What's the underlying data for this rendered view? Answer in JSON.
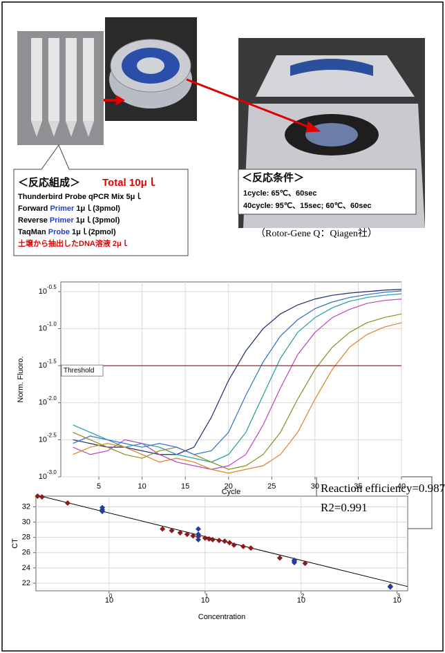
{
  "figure": {
    "composition": {
      "title": "＜反応組成＞",
      "total": "Total 10μｌ",
      "total_color": "#e00000",
      "lines": [
        [
          {
            "text": "Thunderbird Probe qPCR Mix  5μｌ",
            "color": "#000000"
          }
        ],
        [
          {
            "text": "Forward ",
            "color": "#000000"
          },
          {
            "text": "Primer",
            "color": "#1f3fd0"
          },
          {
            "text": " 1μｌ(3pmol)",
            "color": "#000000"
          }
        ],
        [
          {
            "text": "Reverse ",
            "color": "#000000"
          },
          {
            "text": "Primer",
            "color": "#1f3fd0"
          },
          {
            "text": " 1μｌ(3pmol)",
            "color": "#000000"
          }
        ],
        [
          {
            "text": "TaqMan ",
            "color": "#000000"
          },
          {
            "text": "Probe",
            "color": "#1f3fd0"
          },
          {
            "text": " 1μｌ(2pmol)",
            "color": "#000000"
          }
        ],
        [
          {
            "text": "土壌から抽出したDNA溶液 2μｌ",
            "color": "#e00000"
          }
        ]
      ]
    },
    "conditions": {
      "title": "＜反応条件＞",
      "lines": [
        "1cycle: 65℃、60sec",
        "40cycle: 95℃、15sec; 60℃、60sec"
      ]
    },
    "caption": "（Rotor-Gene Q：Qiagen社）"
  },
  "chart_data": [
    {
      "type": "line",
      "xlabel": "Cycle",
      "ylabel": "Norm. Fluoro.",
      "log_y": true,
      "grid": true,
      "x": [
        2,
        4,
        6,
        8,
        10,
        12,
        14,
        16,
        18,
        20,
        22,
        24,
        26,
        28,
        30,
        32,
        34,
        36,
        38,
        40
      ],
      "xlim": [
        0.6,
        40
      ],
      "xticks": [
        5,
        10,
        15,
        20,
        25,
        30,
        35,
        40
      ],
      "ylim": [
        0.001,
        0.427
      ],
      "yticks": [
        {
          "value": 0.316,
          "label": "10",
          "exponent": "-0.5"
        },
        {
          "value": 0.1,
          "label": "10",
          "exponent": "-1.0"
        },
        {
          "value": 0.0316,
          "label": "10",
          "exponent": "-1.5"
        },
        {
          "value": 0.01,
          "label": "10",
          "exponent": "-2.0"
        },
        {
          "value": 0.00316,
          "label": "10",
          "exponent": "-2.5"
        },
        {
          "value": 0.001,
          "label": "10",
          "exponent": "-3.0"
        }
      ],
      "threshold": {
        "label": "Threshold",
        "value": 0.0316,
        "color": "#b22222"
      },
      "series": [
        {
          "color": "#1a2a6c",
          "values": [
            0.00316,
            0.00282,
            0.00251,
            0.00251,
            0.00224,
            0.002,
            0.002,
            0.00251,
            0.00631,
            0.02,
            0.0501,
            0.1,
            0.158,
            0.209,
            0.251,
            0.282,
            0.302,
            0.316,
            0.331,
            0.339
          ]
        },
        {
          "color": "#1f9e9e",
          "values": [
            0.00501,
            0.00398,
            0.00316,
            0.00251,
            0.00282,
            0.00251,
            0.002,
            0.00178,
            0.00158,
            0.002,
            0.00398,
            0.0126,
            0.0398,
            0.0891,
            0.141,
            0.191,
            0.234,
            0.263,
            0.282,
            0.295
          ]
        },
        {
          "color": "#c040c0",
          "values": [
            0.00251,
            0.002,
            0.00224,
            0.00316,
            0.00282,
            0.002,
            0.00158,
            0.00141,
            0.00126,
            0.00141,
            0.002,
            0.00501,
            0.0158,
            0.0447,
            0.0891,
            0.141,
            0.182,
            0.219,
            0.24,
            0.251
          ]
        },
        {
          "color": "#8a8a20",
          "values": [
            0.00398,
            0.00316,
            0.00251,
            0.002,
            0.00178,
            0.00224,
            0.00251,
            0.002,
            0.00158,
            0.00126,
            0.00141,
            0.002,
            0.00398,
            0.0112,
            0.0282,
            0.0562,
            0.0891,
            0.12,
            0.141,
            0.158
          ]
        },
        {
          "color": "#e08020",
          "values": [
            0.002,
            0.00251,
            0.00282,
            0.00251,
            0.002,
            0.00158,
            0.00178,
            0.00158,
            0.00126,
            0.00112,
            0.00126,
            0.00141,
            0.002,
            0.00398,
            0.0112,
            0.0282,
            0.0562,
            0.0832,
            0.105,
            0.12
          ]
        },
        {
          "color": "#2f6fd0",
          "values": [
            0.00282,
            0.00355,
            0.00316,
            0.00282,
            0.00251,
            0.00282,
            0.00251,
            0.002,
            0.00224,
            0.00398,
            0.0126,
            0.0355,
            0.0794,
            0.132,
            0.186,
            0.229,
            0.263,
            0.288,
            0.309,
            0.324
          ]
        }
      ]
    },
    {
      "type": "scatter",
      "xlabel": "Concentration",
      "ylabel": "CT",
      "log_x": true,
      "grid": true,
      "xlim": [
        0.173,
        1290
      ],
      "xticks": [
        {
          "value": 1,
          "label": "10",
          "exponent": "0"
        },
        {
          "value": 10,
          "label": "10",
          "exponent": "1"
        },
        {
          "value": 100,
          "label": "10",
          "exponent": "2"
        },
        {
          "value": 1000,
          "label": "10",
          "exponent": "3"
        }
      ],
      "ylim": [
        21,
        33.4
      ],
      "yticks": [
        22,
        24,
        26,
        28,
        30,
        32
      ],
      "fit": {
        "color": "#000000",
        "x": [
          0.173,
          1290
        ],
        "y": [
          33.56,
          21.56
        ]
      },
      "series": [
        {
          "color": "#8b1a1a",
          "x": [
            0.18,
            0.2,
            0.37,
            3.6,
            4.5,
            5.5,
            6.5,
            7.5,
            8.5,
            10,
            11,
            12,
            14,
            16,
            18,
            20,
            25,
            30,
            60,
            85,
            110,
            850
          ],
          "y": [
            33.4,
            33.3,
            32.5,
            29.1,
            28.9,
            28.6,
            28.4,
            28.2,
            28.1,
            27.9,
            27.8,
            27.7,
            27.6,
            27.5,
            27.3,
            27.0,
            26.8,
            26.6,
            25.3,
            24.9,
            24.6,
            21.6
          ]
        },
        {
          "color": "#1f3f9f",
          "x": [
            0.85,
            0.85,
            0.85,
            8.5,
            8.5,
            8.5,
            85,
            85,
            850
          ],
          "y": [
            31.9,
            31.4,
            31.6,
            29.1,
            28.4,
            27.7,
            25.0,
            24.7,
            21.5
          ]
        }
      ],
      "annotations": [
        "Reaction efficiency=0.987",
        "R2=0.991"
      ]
    }
  ]
}
